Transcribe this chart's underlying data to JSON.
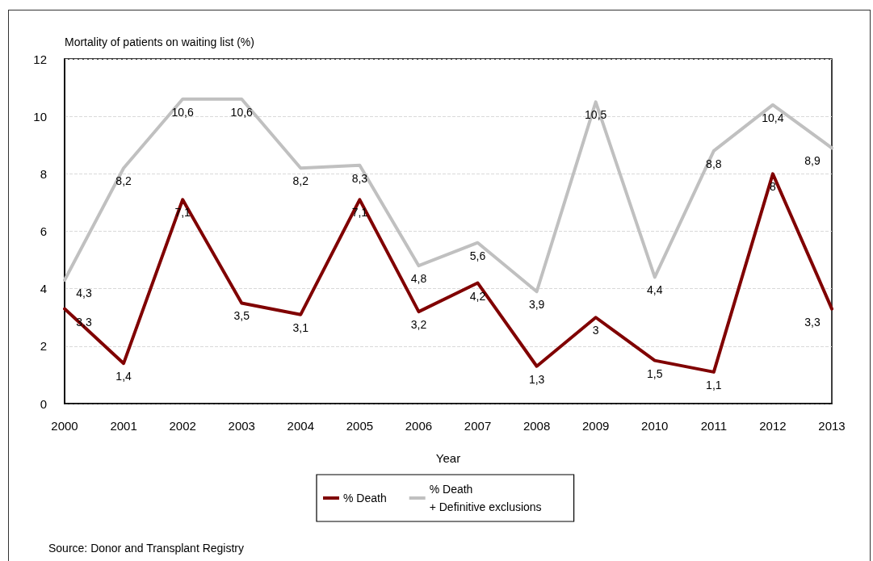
{
  "chart_data": {
    "type": "line",
    "xlabel": "Year",
    "ylabel": "Mortality of patients on waiting list (%)",
    "categories": [
      "2000",
      "2001",
      "2002",
      "2003",
      "2004",
      "2005",
      "2006",
      "2007",
      "2008",
      "2009",
      "2010",
      "2011",
      "2012",
      "2013"
    ],
    "series": [
      {
        "name": "% Death",
        "color": "#800000",
        "values": [
          3.3,
          1.4,
          7.1,
          3.5,
          3.1,
          7.1,
          3.2,
          4.2,
          1.3,
          3,
          1.5,
          1.1,
          8,
          3.3
        ],
        "value_labels": [
          "3,3",
          "1,4",
          "7,1",
          "3,5",
          "3,1",
          "7,1",
          "3,2",
          "4,2",
          "1,3",
          "3",
          "1,5",
          "1,1",
          "8",
          "3,3"
        ]
      },
      {
        "name": "% Death\n+ Definitive exclusions",
        "color": "#c0c0c0",
        "values": [
          4.3,
          8.2,
          10.6,
          10.6,
          8.2,
          8.3,
          4.8,
          5.6,
          3.9,
          10.5,
          4.4,
          8.8,
          10.4,
          8.9
        ],
        "value_labels": [
          "4,3",
          "8,2",
          "10,6",
          "10,6",
          "8,2",
          "8,3",
          "4,8",
          "5,6",
          "3,9",
          "10,5",
          "4,4",
          "8,8",
          "10,4",
          "8,9"
        ]
      }
    ],
    "ylim": [
      0,
      12
    ],
    "yticks": [
      0,
      2,
      4,
      6,
      8,
      10,
      12
    ],
    "grid": "y",
    "legend": "bottom",
    "marker": "none",
    "line_style": "solid",
    "annotations": [
      "Source: Donor and Transplant Registry"
    ]
  }
}
